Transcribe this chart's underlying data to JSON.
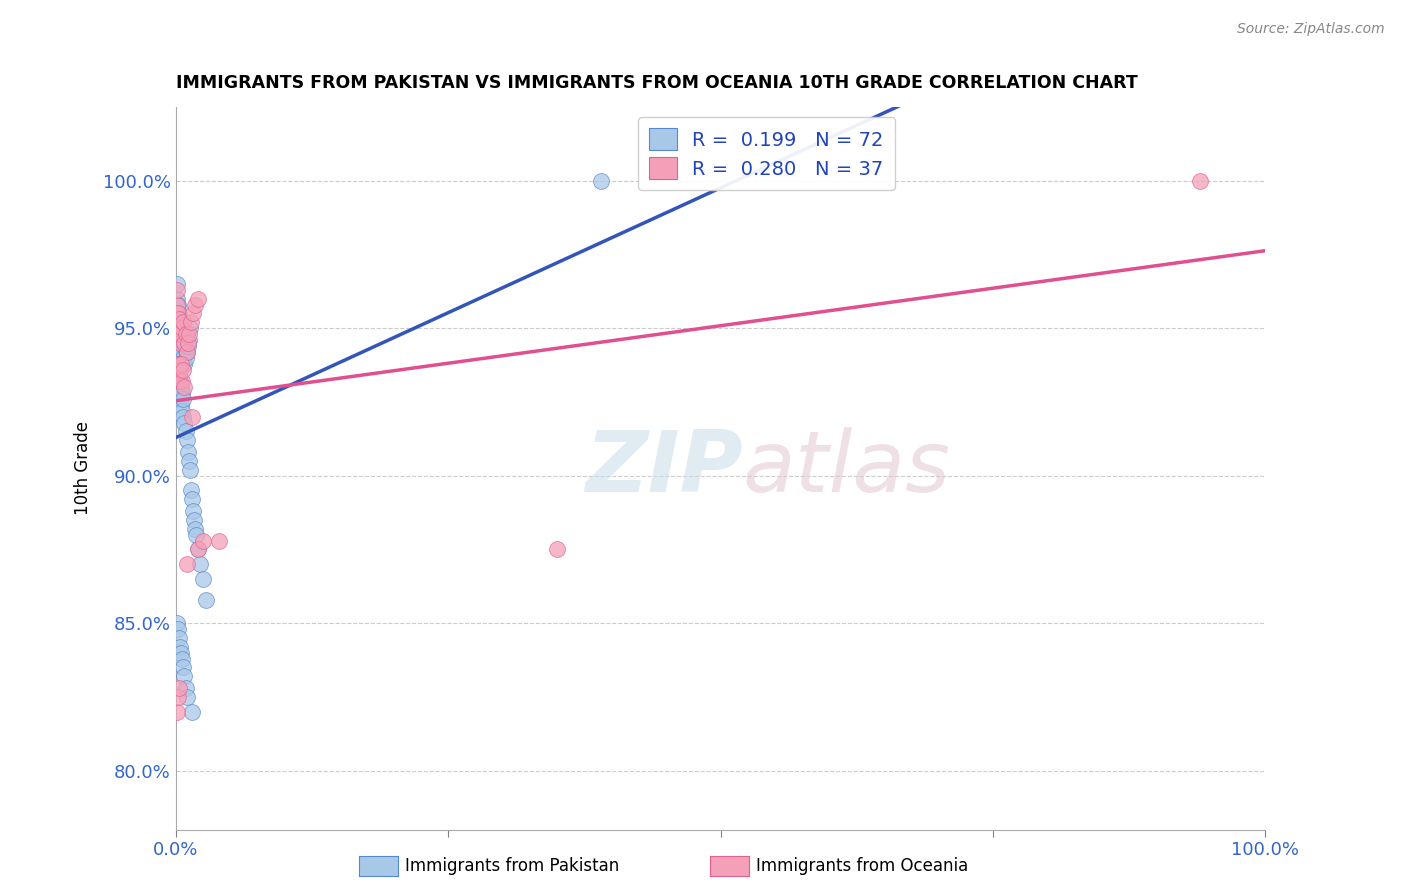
{
  "title": "IMMIGRANTS FROM PAKISTAN VS IMMIGRANTS FROM OCEANIA 10TH GRADE CORRELATION CHART",
  "source": "Source: ZipAtlas.com",
  "ylabel": "10th Grade",
  "xlim": [
    0.0,
    1.0
  ],
  "ylim": [
    0.78,
    1.025
  ],
  "x_ticks": [
    0.0,
    0.25,
    0.5,
    0.75,
    1.0
  ],
  "x_tick_labels": [
    "0.0%",
    "",
    "",
    "",
    "100.0%"
  ],
  "y_ticks": [
    0.8,
    0.85,
    0.9,
    0.95,
    1.0
  ],
  "y_tick_labels": [
    "80.0%",
    "85.0%",
    "90.0%",
    "95.0%",
    "100.0%"
  ],
  "R_pakistan": 0.199,
  "N_pakistan": 72,
  "R_oceania": 0.28,
  "N_oceania": 37,
  "color_pakistan": "#a8c8e8",
  "color_oceania": "#f4a0b8",
  "edge_pakistan": "#5588cc",
  "edge_oceania": "#e06090",
  "line_pakistan": "#3355bb",
  "line_oceania": "#e05090",
  "watermark_color": "#d8e8f0",
  "watermark_color2": "#e8d8e0",
  "legend_label_pak": "R =  0.199   N = 72",
  "legend_label_oce": "R =  0.280   N = 37",
  "bottom_label_pak": "Immigrants from Pakistan",
  "bottom_label_oce": "Immigrants from Oceania",
  "pak_x": [
    0.001,
    0.001,
    0.001,
    0.001,
    0.001,
    0.002,
    0.002,
    0.002,
    0.002,
    0.003,
    0.003,
    0.003,
    0.004,
    0.004,
    0.004,
    0.005,
    0.005,
    0.006,
    0.006,
    0.007,
    0.007,
    0.008,
    0.008,
    0.009,
    0.009,
    0.01,
    0.01,
    0.011,
    0.012,
    0.013,
    0.001,
    0.001,
    0.002,
    0.002,
    0.003,
    0.003,
    0.004,
    0.004,
    0.005,
    0.005,
    0.006,
    0.006,
    0.007,
    0.007,
    0.008,
    0.009,
    0.01,
    0.011,
    0.012,
    0.013,
    0.014,
    0.015,
    0.016,
    0.017,
    0.018,
    0.019,
    0.02,
    0.022,
    0.025,
    0.028,
    0.001,
    0.002,
    0.003,
    0.004,
    0.005,
    0.006,
    0.007,
    0.008,
    0.009,
    0.01,
    0.015,
    0.39
  ],
  "pak_y": [
    0.95,
    0.955,
    0.96,
    0.965,
    0.958,
    0.945,
    0.952,
    0.948,
    0.958,
    0.942,
    0.948,
    0.955,
    0.94,
    0.945,
    0.952,
    0.938,
    0.944,
    0.942,
    0.948,
    0.94,
    0.946,
    0.938,
    0.944,
    0.94,
    0.946,
    0.942,
    0.948,
    0.944,
    0.946,
    0.95,
    0.932,
    0.938,
    0.93,
    0.936,
    0.928,
    0.934,
    0.926,
    0.932,
    0.924,
    0.93,
    0.922,
    0.928,
    0.92,
    0.926,
    0.918,
    0.915,
    0.912,
    0.908,
    0.905,
    0.902,
    0.895,
    0.892,
    0.888,
    0.885,
    0.882,
    0.88,
    0.875,
    0.87,
    0.865,
    0.858,
    0.85,
    0.848,
    0.845,
    0.842,
    0.84,
    0.838,
    0.835,
    0.832,
    0.828,
    0.825,
    0.82,
    1.0
  ],
  "oce_x": [
    0.001,
    0.001,
    0.002,
    0.002,
    0.003,
    0.003,
    0.004,
    0.005,
    0.006,
    0.007,
    0.008,
    0.009,
    0.01,
    0.011,
    0.012,
    0.014,
    0.016,
    0.018,
    0.02,
    0.001,
    0.002,
    0.003,
    0.004,
    0.005,
    0.006,
    0.007,
    0.008,
    0.015,
    0.02,
    0.025,
    0.04,
    0.01,
    0.35,
    0.94,
    0.001,
    0.002,
    0.003
  ],
  "oce_y": [
    0.958,
    0.963,
    0.95,
    0.955,
    0.948,
    0.953,
    0.945,
    0.948,
    0.95,
    0.952,
    0.945,
    0.948,
    0.942,
    0.945,
    0.948,
    0.952,
    0.955,
    0.958,
    0.96,
    0.935,
    0.938,
    0.932,
    0.936,
    0.938,
    0.932,
    0.936,
    0.93,
    0.92,
    0.875,
    0.878,
    0.878,
    0.87,
    0.875,
    1.0,
    0.82,
    0.825,
    0.828
  ]
}
